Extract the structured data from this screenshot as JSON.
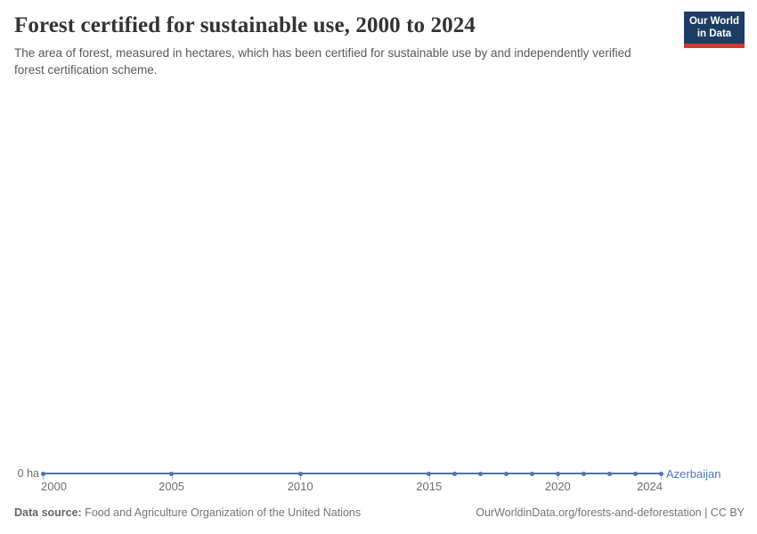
{
  "header": {
    "title": "Forest certified for sustainable use, 2000 to 2024",
    "subtitle": "The area of forest, measured in hectares, which has been certified for sustainable use by and independently verified forest certification scheme.",
    "logo": {
      "line1": "Our World",
      "line2": "in Data"
    }
  },
  "chart_data": {
    "type": "line",
    "title": "Forest certified for sustainable use, 2000 to 2024",
    "xlabel": "",
    "ylabel": "",
    "unit": "ha",
    "xlim": [
      2000,
      2024
    ],
    "x_ticks": [
      2000,
      2005,
      2010,
      2015,
      2020,
      2024
    ],
    "y_tick_label": "0 ha",
    "grid": false,
    "legend_position": "end-of-line",
    "series": [
      {
        "name": "Azerbaijan",
        "color": "#4f74b0",
        "label_color": "#4e7ab7",
        "x": [
          2000,
          2005,
          2010,
          2015,
          2016,
          2017,
          2018,
          2019,
          2020,
          2021,
          2022,
          2023,
          2024
        ],
        "values": [
          0,
          0,
          0,
          0,
          0,
          0,
          0,
          0,
          0,
          0,
          0,
          0,
          0
        ]
      }
    ]
  },
  "colors": {
    "logo_navy": "#1d3d63",
    "logo_red": "#d4382c",
    "series_blue": "#4f74b0"
  },
  "footer": {
    "source_label": "Data source:",
    "source_text": " Food and Agriculture Organization of the United Nations",
    "credit": "OurWorldinData.org/forests-and-deforestation | CC BY"
  }
}
